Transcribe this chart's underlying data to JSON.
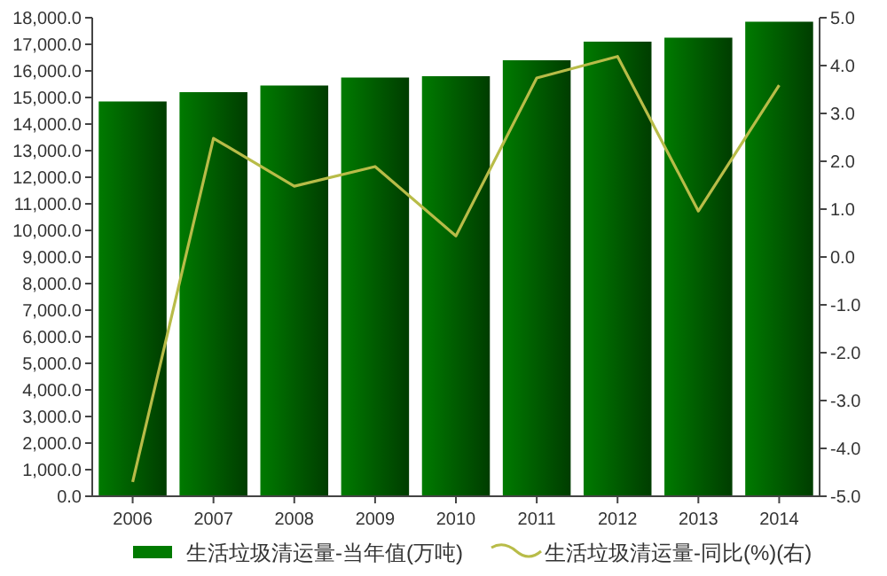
{
  "chart_data": {
    "type": "bar",
    "categories": [
      "2006",
      "2007",
      "2008",
      "2009",
      "2010",
      "2011",
      "2012",
      "2013",
      "2014"
    ],
    "series": [
      {
        "name": "生活垃圾清运量-当年值(万吨)",
        "color": "#007a00",
        "values": [
          14850,
          15200,
          15450,
          15750,
          15800,
          16400,
          17100,
          17250,
          17850
        ]
      },
      {
        "name": "生活垃圾清运量-同比(%)(右)",
        "type": "line",
        "axis": "y2",
        "color": "#b8bc48",
        "values": [
          -4.7,
          2.48,
          1.48,
          1.89,
          0.44,
          3.74,
          4.19,
          0.96,
          3.59
        ]
      }
    ],
    "ylim": [
      0,
      18000
    ],
    "yticks": [
      {
        "value": 0,
        "label": "0.0"
      },
      {
        "value": 1000,
        "label": "1,000.0"
      },
      {
        "value": 2000,
        "label": "2,000.0"
      },
      {
        "value": 3000,
        "label": "3,000.0"
      },
      {
        "value": 4000,
        "label": "4,000.0"
      },
      {
        "value": 5000,
        "label": "5,000.0"
      },
      {
        "value": 6000,
        "label": "6,000.0"
      },
      {
        "value": 7000,
        "label": "7,000.0"
      },
      {
        "value": 8000,
        "label": "8,000.0"
      },
      {
        "value": 9000,
        "label": "9,000.0"
      },
      {
        "value": 10000,
        "label": "10,000.0"
      },
      {
        "value": 11000,
        "label": "11,000.0"
      },
      {
        "value": 12000,
        "label": "12,000.0"
      },
      {
        "value": 13000,
        "label": "13,000.0"
      },
      {
        "value": 14000,
        "label": "14,000.0"
      },
      {
        "value": 15000,
        "label": "15,000.0"
      },
      {
        "value": 16000,
        "label": "16,000.0"
      },
      {
        "value": 17000,
        "label": "17,000.0"
      },
      {
        "value": 18000,
        "label": "18,000.0"
      }
    ],
    "y2lim": [
      -5,
      5
    ],
    "y2ticks": [
      {
        "value": -5,
        "label": "-5.0"
      },
      {
        "value": -4,
        "label": "-4.0"
      },
      {
        "value": -3,
        "label": "-3.0"
      },
      {
        "value": -2,
        "label": "-2.0"
      },
      {
        "value": -1,
        "label": "-1.0"
      },
      {
        "value": 0,
        "label": "0.0"
      },
      {
        "value": 1,
        "label": "1.0"
      },
      {
        "value": 2,
        "label": "2.0"
      },
      {
        "value": 3,
        "label": "3.0"
      },
      {
        "value": 4,
        "label": "4.0"
      },
      {
        "value": 5,
        "label": "5.0"
      }
    ],
    "grid": false,
    "legend": "bottom"
  }
}
